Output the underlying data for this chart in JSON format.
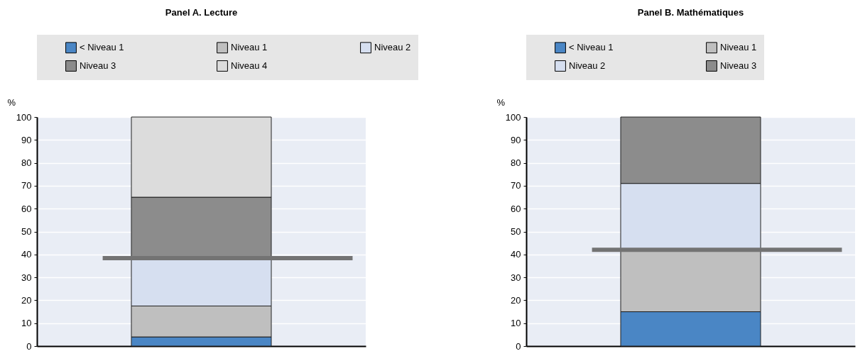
{
  "chart_data": [
    {
      "type": "bar",
      "title": "Panel A. Lecture",
      "ylabel": "%",
      "stacked": true,
      "categories": [
        null
      ],
      "ylim": [
        0,
        100
      ],
      "yticks": [
        0,
        10,
        20,
        30,
        40,
        50,
        60,
        70,
        80,
        90,
        100
      ],
      "grid": "y",
      "legend": "top",
      "series": [
        {
          "name": "< Niveau 1",
          "color": "#4a86c5",
          "values": [
            4
          ]
        },
        {
          "name": "Niveau 1",
          "color": "#bfbfbf",
          "values": [
            13.5
          ]
        },
        {
          "name": "Niveau 2",
          "color": "#d6dff0",
          "values": [
            20.5
          ]
        },
        {
          "name": "Niveau 3",
          "color": "#8c8c8c",
          "values": [
            27
          ]
        },
        {
          "name": "Niveau 4",
          "color": "#dcdcdc",
          "values": [
            35
          ]
        }
      ],
      "ref_lines": [
        {
          "axis": "y",
          "value": 38.4,
          "color": "#737373"
        }
      ]
    },
    {
      "type": "bar",
      "title": "Panel B. Mathématiques",
      "ylabel": "%",
      "stacked": true,
      "categories": [
        null
      ],
      "ylim": [
        0,
        100
      ],
      "yticks": [
        0,
        10,
        20,
        30,
        40,
        50,
        60,
        70,
        80,
        90,
        100
      ],
      "grid": "y",
      "legend": "top",
      "series": [
        {
          "name": "< Niveau 1",
          "color": "#4a86c5",
          "values": [
            15
          ]
        },
        {
          "name": "Niveau 1",
          "color": "#bfbfbf",
          "values": [
            27
          ]
        },
        {
          "name": "Niveau 2",
          "color": "#d6dff0",
          "values": [
            29
          ]
        },
        {
          "name": "Niveau 3",
          "color": "#8c8c8c",
          "values": [
            29
          ]
        }
      ],
      "ref_lines": [
        {
          "axis": "y",
          "value": 42,
          "color": "#737373"
        }
      ]
    }
  ]
}
